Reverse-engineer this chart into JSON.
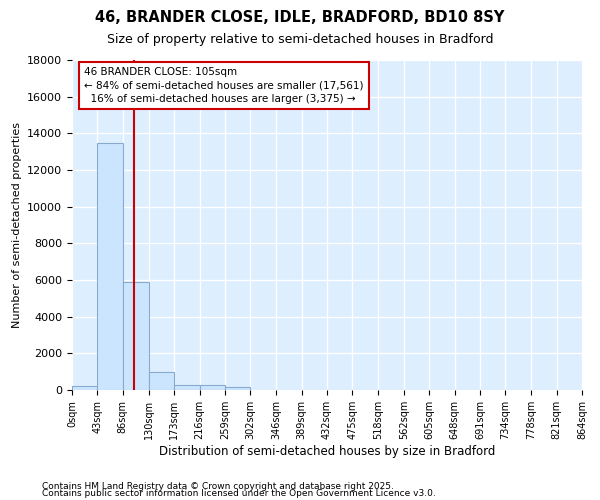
{
  "title1": "46, BRANDER CLOSE, IDLE, BRADFORD, BD10 8SY",
  "title2": "Size of property relative to semi-detached houses in Bradford",
  "xlabel": "Distribution of semi-detached houses by size in Bradford",
  "ylabel": "Number of semi-detached properties",
  "bin_edges": [
    0,
    43,
    86,
    130,
    173,
    216,
    259,
    302,
    346,
    389,
    432,
    475,
    518,
    562,
    605,
    648,
    691,
    734,
    778,
    821,
    864
  ],
  "bin_labels": [
    "0sqm",
    "43sqm",
    "86sqm",
    "130sqm",
    "173sqm",
    "216sqm",
    "259sqm",
    "302sqm",
    "346sqm",
    "389sqm",
    "432sqm",
    "475sqm",
    "518sqm",
    "562sqm",
    "605sqm",
    "648sqm",
    "691sqm",
    "734sqm",
    "778sqm",
    "821sqm",
    "864sqm"
  ],
  "bar_values": [
    200,
    13500,
    5900,
    1000,
    300,
    300,
    150,
    0,
    0,
    0,
    0,
    0,
    0,
    0,
    0,
    0,
    0,
    0,
    0,
    0
  ],
  "bar_color": "#cce5ff",
  "bar_edge_color": "#88aacc",
  "property_size": 105,
  "property_label": "46 BRANDER CLOSE: 105sqm",
  "pct_smaller": 84,
  "num_smaller": 17561,
  "pct_larger": 16,
  "num_larger": 3375,
  "vline_color": "#cc0000",
  "ylim": [
    0,
    18000
  ],
  "yticks": [
    0,
    2000,
    4000,
    6000,
    8000,
    10000,
    12000,
    14000,
    16000,
    18000
  ],
  "bg_color": "#ffffff",
  "plot_bg_color": "#ddeeff",
  "grid_color": "#ffffff",
  "footer1": "Contains HM Land Registry data © Crown copyright and database right 2025.",
  "footer2": "Contains public sector information licensed under the Open Government Licence v3.0."
}
